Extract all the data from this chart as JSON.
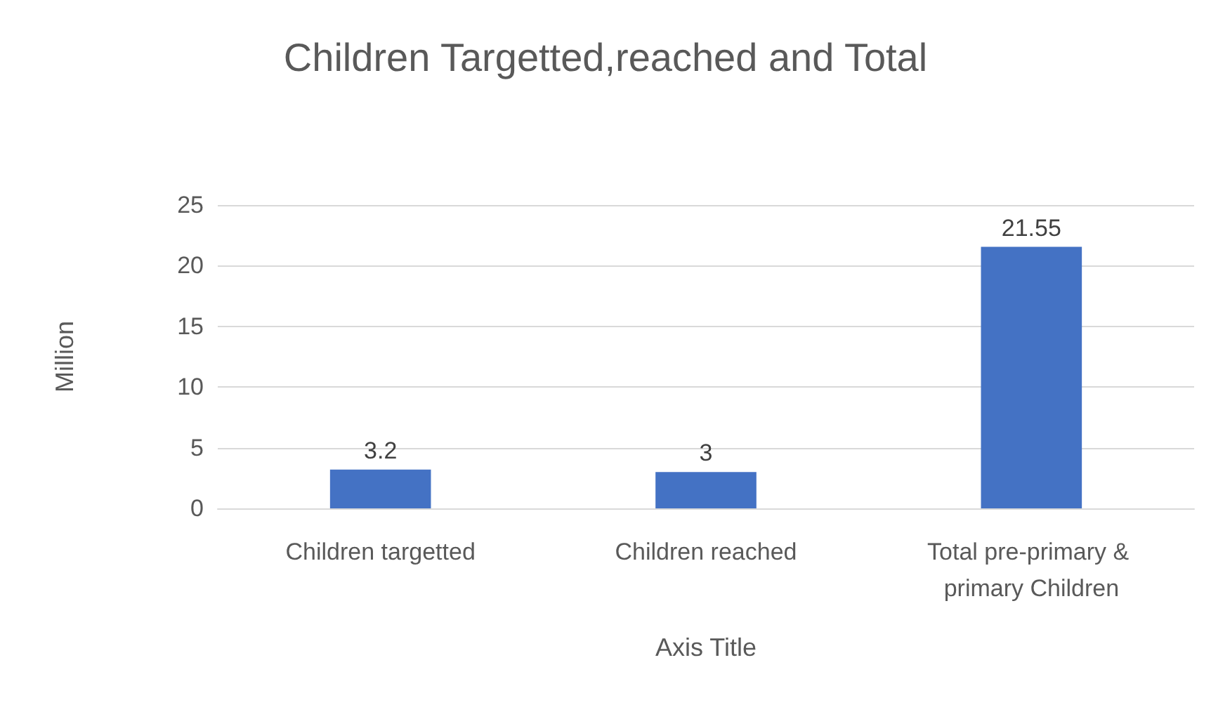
{
  "chart_data": {
    "type": "bar",
    "title": "Children Targetted,reached and Total",
    "xlabel": "Axis Title",
    "ylabel": "Million",
    "categories": [
      "Children targetted",
      "Children reached",
      "Total pre-primary & primary Children"
    ],
    "values": [
      3.2,
      3,
      21.55
    ],
    "color": "#4472c4",
    "ylim": [
      0,
      25
    ],
    "yticks": [
      0,
      5,
      10,
      15,
      20,
      25
    ],
    "grid": "y",
    "data_labels": true
  }
}
